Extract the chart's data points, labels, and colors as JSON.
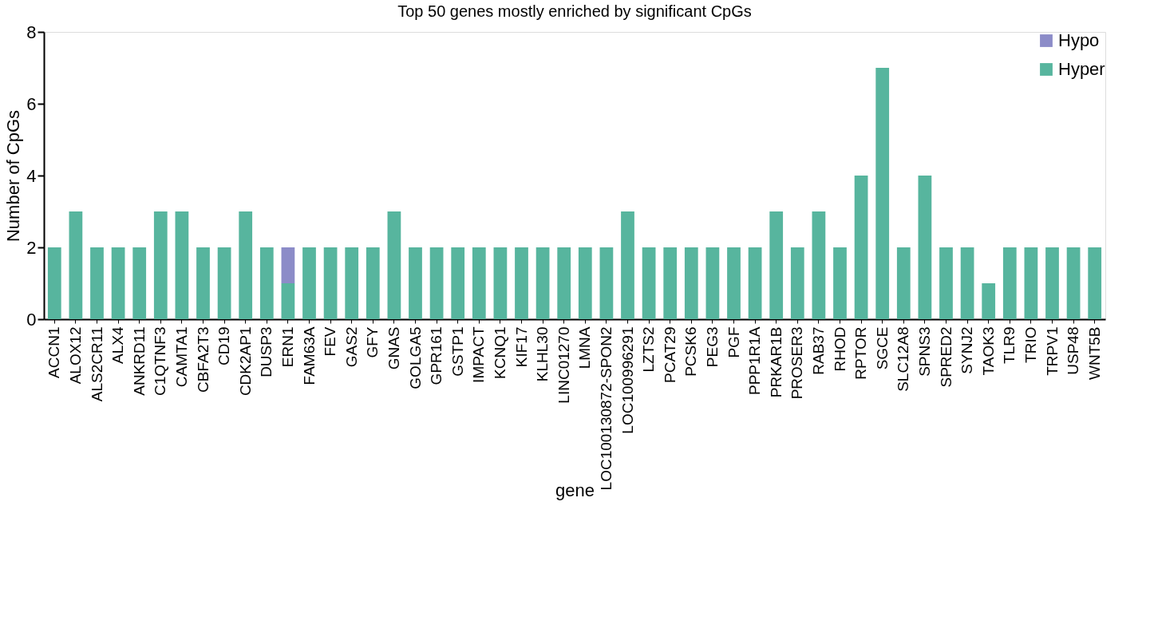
{
  "chart_data": {
    "type": "bar",
    "title": "Top 50 genes mostly enriched by significant CpGs",
    "xlabel": "gene",
    "ylabel": "Number of CpGs",
    "categories": [
      "ACCN1",
      "ALOX12",
      "ALS2CR11",
      "ALX4",
      "ANKRD11",
      "C1QTNF3",
      "CAMTA1",
      "CBFA2T3",
      "CD19",
      "CDK2AP1",
      "DUSP3",
      "ERN1",
      "FAM63A",
      "FEV",
      "GAS2",
      "GFY",
      "GNAS",
      "GOLGA5",
      "GPR161",
      "GSTP1",
      "IMPACT",
      "KCNQ1",
      "KIF17",
      "KLHL30",
      "LINC01270",
      "LMNA",
      "LOC100130872-SPON2",
      "LOC100996291",
      "LZTS2",
      "PCAT29",
      "PCSK6",
      "PEG3",
      "PGF",
      "PPP1R1A",
      "PRKAR1B",
      "PROSER3",
      "RAB37",
      "RHOD",
      "RPTOR",
      "SGCE",
      "SLC12A8",
      "SPNS3",
      "SPRED2",
      "SYNJ2",
      "TAOK3",
      "TLR9",
      "TRIO",
      "TRPV1",
      "USP48",
      "WNT5B"
    ],
    "series": [
      {
        "name": "Hyper",
        "color": "#57b59e",
        "values": [
          2,
          3,
          2,
          2,
          2,
          3,
          3,
          2,
          2,
          3,
          2,
          1,
          2,
          2,
          2,
          2,
          3,
          2,
          2,
          2,
          2,
          2,
          2,
          2,
          2,
          2,
          2,
          3,
          2,
          2,
          2,
          2,
          2,
          2,
          3,
          2,
          3,
          2,
          4,
          7,
          2,
          4,
          2,
          2,
          1,
          2,
          2,
          2,
          2,
          2
        ]
      },
      {
        "name": "Hypo",
        "color": "#8c8cc8",
        "values": [
          null,
          null,
          null,
          null,
          null,
          null,
          null,
          null,
          null,
          null,
          null,
          1,
          null,
          null,
          null,
          null,
          null,
          null,
          null,
          null,
          null,
          null,
          null,
          null,
          null,
          null,
          null,
          null,
          null,
          null,
          null,
          null,
          null,
          null,
          null,
          null,
          null,
          null,
          null,
          null,
          null,
          null,
          null,
          null,
          null,
          null,
          null,
          null,
          null,
          null
        ]
      }
    ],
    "stacked": true,
    "ylim": [
      0,
      8
    ],
    "yticks": [
      0,
      2,
      4,
      6,
      8
    ],
    "grid": false,
    "legend": "top right"
  }
}
